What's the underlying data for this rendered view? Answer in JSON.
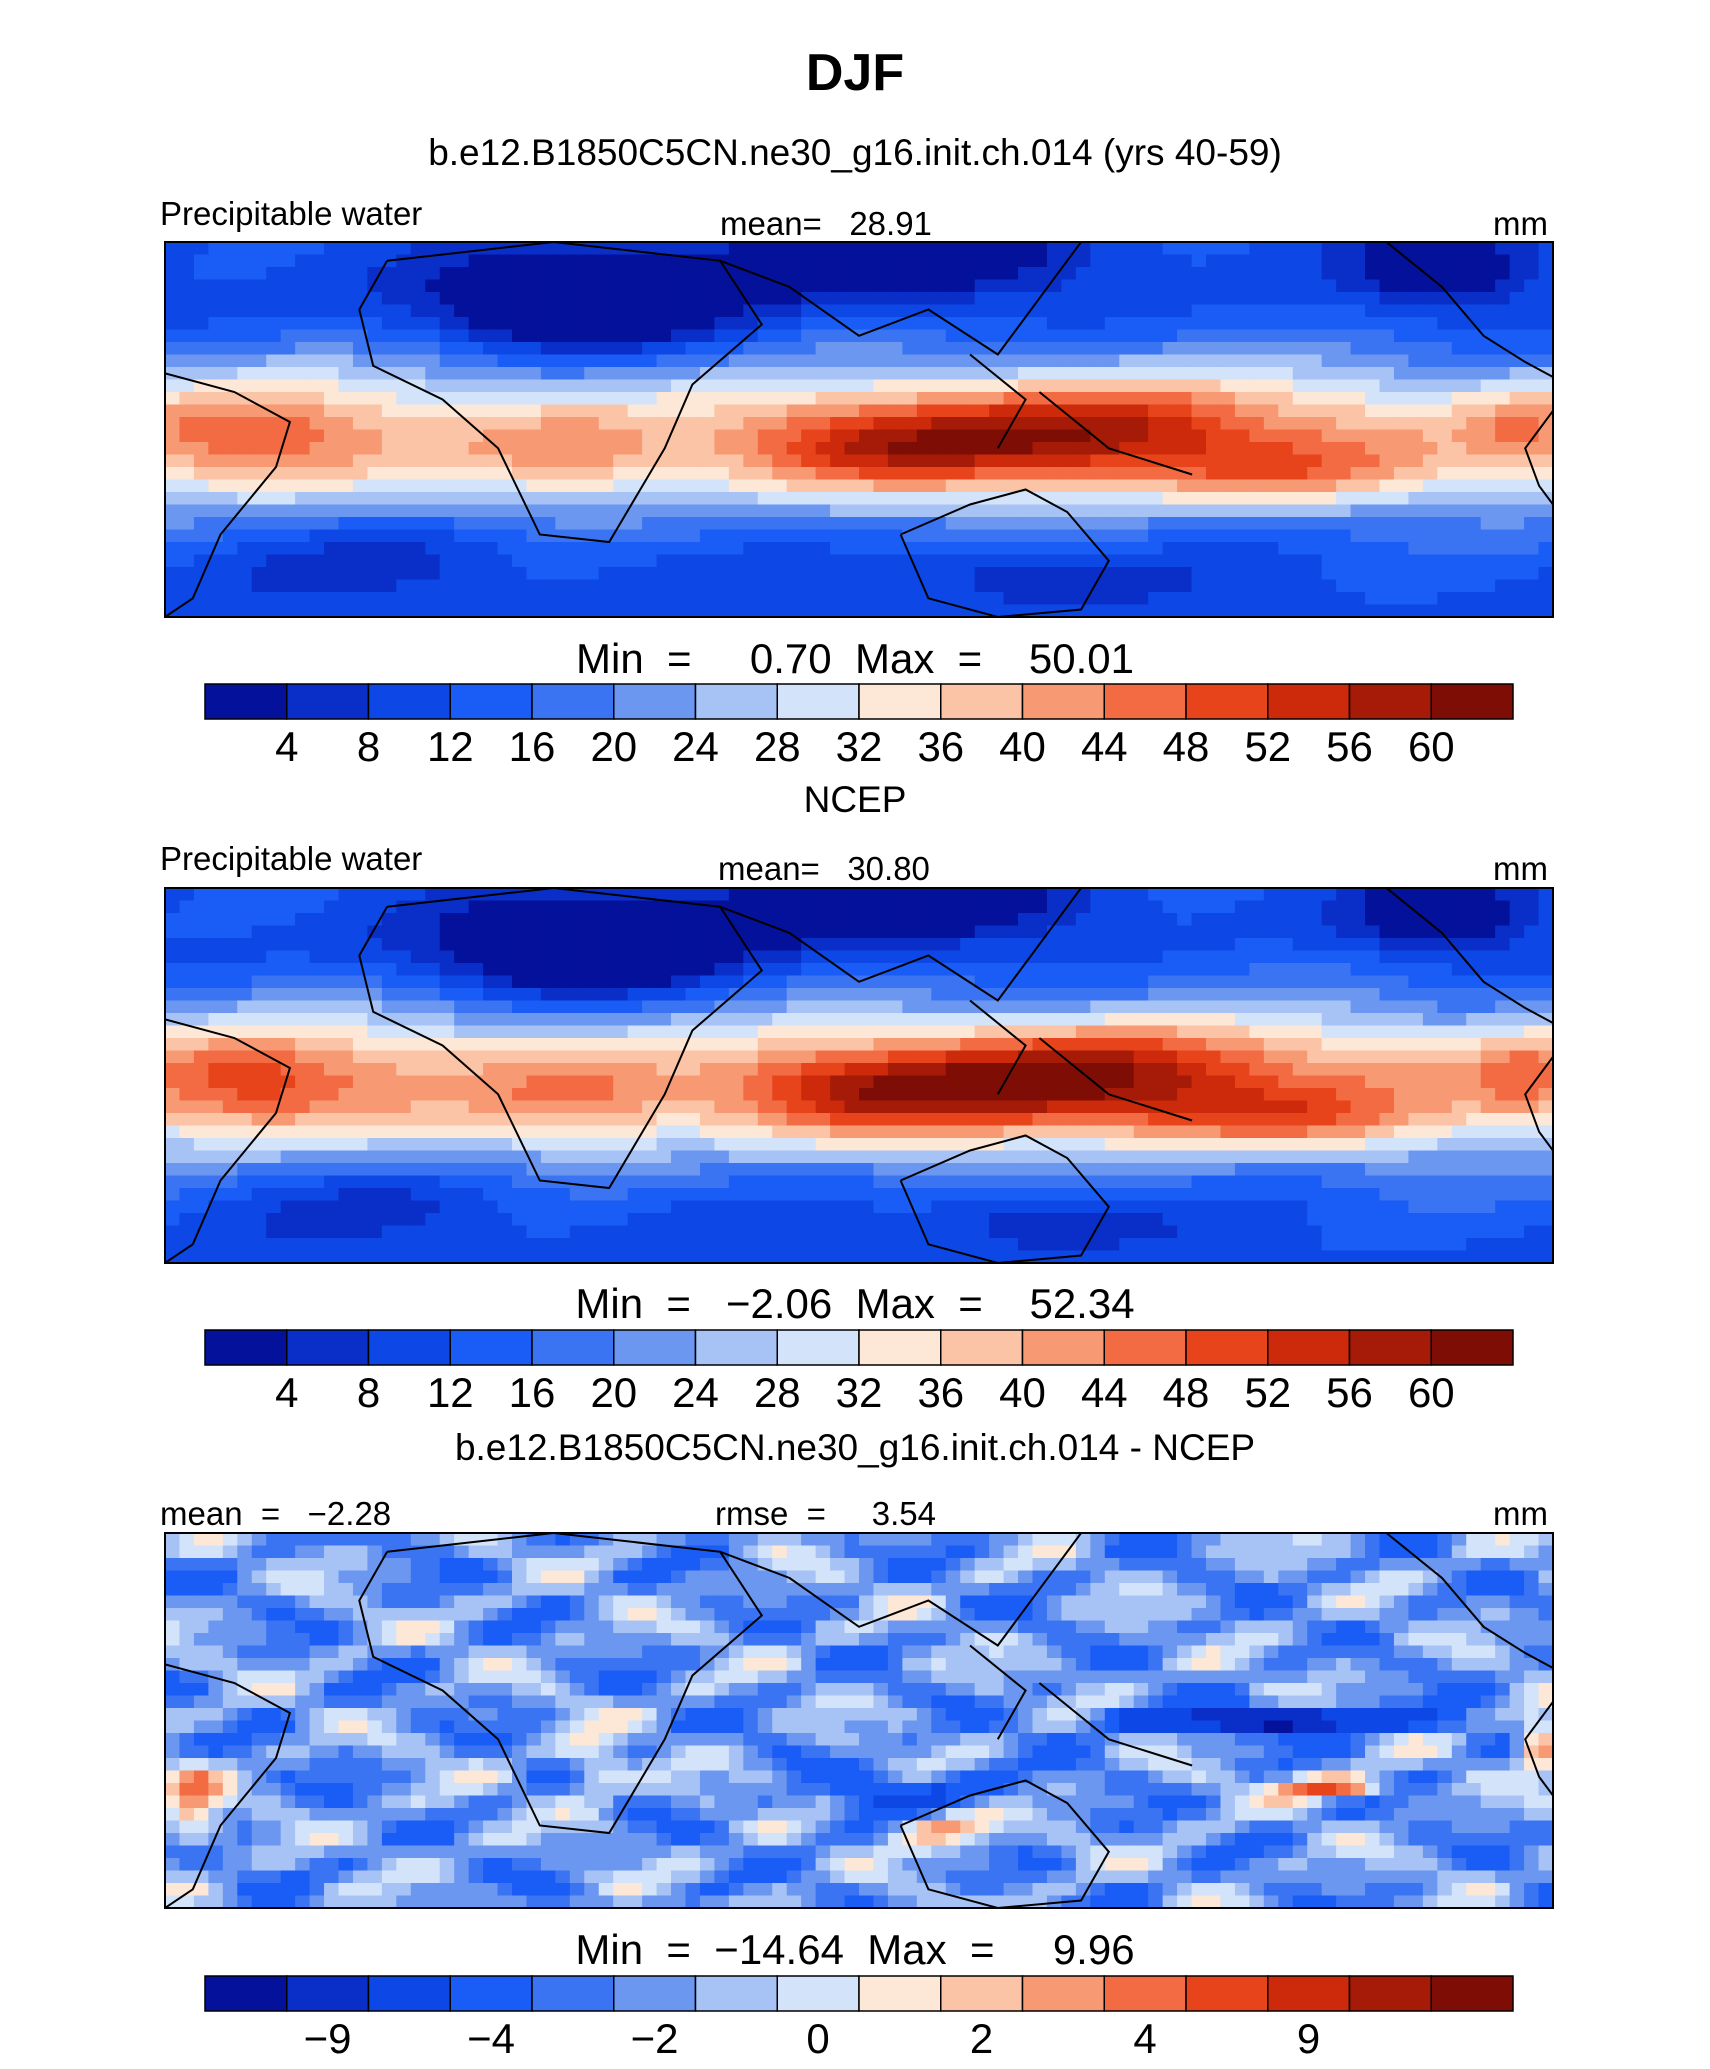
{
  "page": {
    "title": "DJF"
  },
  "chart_data": [
    {
      "type": "heatmap",
      "title": "b.e12.B1850C5CN.ne30_g16.init.ch.014 (yrs 40-59)",
      "variable": "Precipitable water",
      "stat": "mean=   28.91",
      "units": "mm",
      "range_text": "Min  =     0.70  Max  =    50.01",
      "colorbar": {
        "labels": [
          "4",
          "8",
          "12",
          "16",
          "20",
          "24",
          "28",
          "32",
          "36",
          "40",
          "44",
          "48",
          "52",
          "56",
          "60"
        ],
        "colors": [
          "#04119a",
          "#0a2fc9",
          "#0d47e6",
          "#1a5df6",
          "#3a74f2",
          "#6b97f0",
          "#a7c3f5",
          "#d3e3fa",
          "#fde7d6",
          "#fbc4a6",
          "#f79a73",
          "#f26b43",
          "#e8441c",
          "#cc2a0a",
          "#a51b08",
          "#7e0d05"
        ]
      },
      "grid": {
        "type": "field",
        "min": 0.7,
        "max": 50.01,
        "cmin": 2,
        "cmax": 62,
        "base": "precip",
        "scale": 1.0
      }
    },
    {
      "type": "heatmap",
      "title": "NCEP",
      "variable": "Precipitable water",
      "stat": "mean=   30.80",
      "units": "mm",
      "range_text": "Min  =   −2.06  Max  =    52.34",
      "colorbar": {
        "labels": [
          "4",
          "8",
          "12",
          "16",
          "20",
          "24",
          "28",
          "32",
          "36",
          "40",
          "44",
          "48",
          "52",
          "56",
          "60"
        ],
        "colors": [
          "#04119a",
          "#0a2fc9",
          "#0d47e6",
          "#1a5df6",
          "#3a74f2",
          "#6b97f0",
          "#a7c3f5",
          "#d3e3fa",
          "#fde7d6",
          "#fbc4a6",
          "#f79a73",
          "#f26b43",
          "#e8441c",
          "#cc2a0a",
          "#a51b08",
          "#7e0d05"
        ]
      },
      "grid": {
        "type": "field",
        "min": -2.06,
        "max": 52.34,
        "cmin": 2,
        "cmax": 62,
        "base": "precip",
        "scale": 1.05
      }
    },
    {
      "type": "heatmap",
      "title": "b.e12.B1850C5CN.ne30_g16.init.ch.014 - NCEP",
      "variable": "",
      "stat_left": "mean  =   −2.28",
      "stat": "rmse  =     3.54",
      "units": "mm",
      "range_text": "Min  =  −14.64  Max  =     9.96",
      "colorbar": {
        "labels": [
          "−9",
          "−4",
          "−2",
          "0",
          "2",
          "4",
          "9"
        ],
        "label_positions": [
          1.5,
          3.5,
          5.5,
          7.5,
          9.5,
          11.5,
          13.5
        ],
        "colors": [
          "#04119a",
          "#0a2fc9",
          "#0d47e6",
          "#1a5df6",
          "#3a74f2",
          "#6b97f0",
          "#a7c3f5",
          "#d3e3fa",
          "#fde7d6",
          "#fbc4a6",
          "#f79a73",
          "#f26b43",
          "#e8441c",
          "#cc2a0a",
          "#a51b08",
          "#7e0d05"
        ]
      },
      "grid": {
        "type": "difference",
        "min": -14.64,
        "max": 9.96,
        "base": "diff"
      }
    }
  ]
}
